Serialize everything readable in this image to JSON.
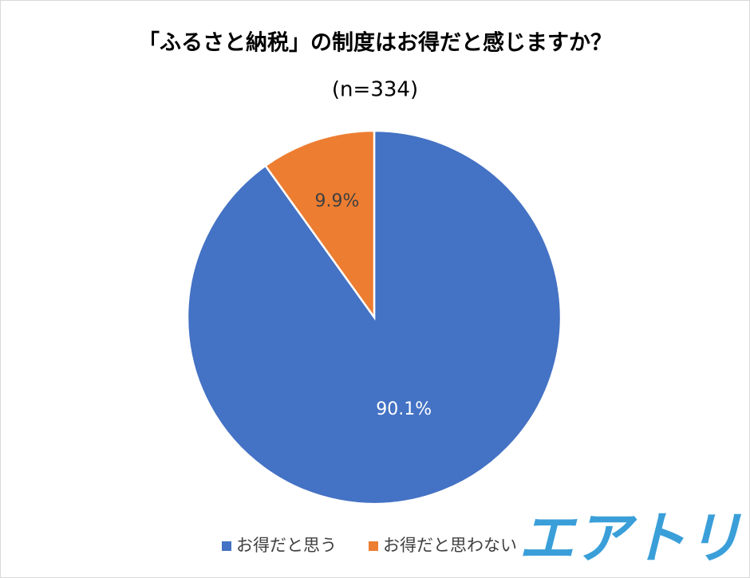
{
  "chart_data": {
    "type": "pie",
    "title": "「ふるさと納税」の制度はお得だと感じますか？",
    "subtitle": "(n=334)",
    "categories": [
      "お得だと思う",
      "お得だと思わない"
    ],
    "values": [
      90.1,
      9.9
    ],
    "value_labels": [
      "90.1%",
      "9.9%"
    ],
    "colors": [
      "#4472c4",
      "#ed7d31"
    ],
    "label_colors": [
      "#ffffff",
      "#404040"
    ],
    "start_angle": 0,
    "direction": "clockwise",
    "legend": "bottom"
  },
  "logo": "エアトリ"
}
